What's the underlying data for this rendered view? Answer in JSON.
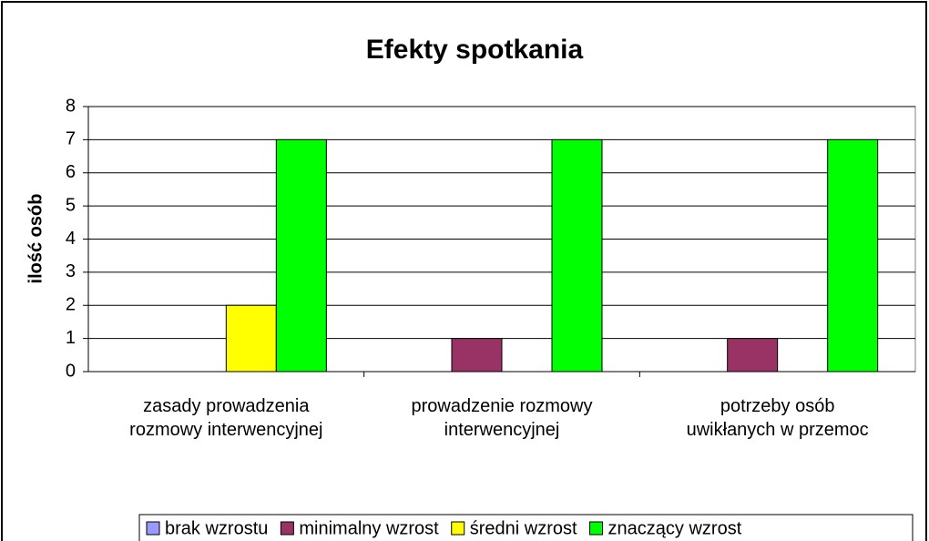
{
  "chart_data": {
    "type": "bar",
    "title": "Efekty spotkania",
    "y_label": "ilość osób",
    "categories": [
      "zasady prowadzenia rozmowy interwencyjnej",
      "prowadzenie rozmowy interwencyjnej",
      "potrzeby osób uwikłanych w przemoc"
    ],
    "series": [
      {
        "name": "brak wzrostu",
        "color": "#9999ff",
        "values": [
          0,
          0,
          0
        ]
      },
      {
        "name": "minimalny wzrost",
        "color": "#993366",
        "values": [
          0,
          1,
          1
        ]
      },
      {
        "name": "średni wzrost",
        "color": "#ffff00",
        "values": [
          2,
          0,
          0
        ]
      },
      {
        "name": "znaczący wzrost",
        "color": "#00ff00",
        "values": [
          7,
          7,
          7
        ]
      }
    ],
    "ylim": [
      0,
      8
    ],
    "yticks": [
      0,
      1,
      2,
      3,
      4,
      5,
      6,
      7,
      8
    ],
    "grid": true,
    "legend": "bottom"
  }
}
